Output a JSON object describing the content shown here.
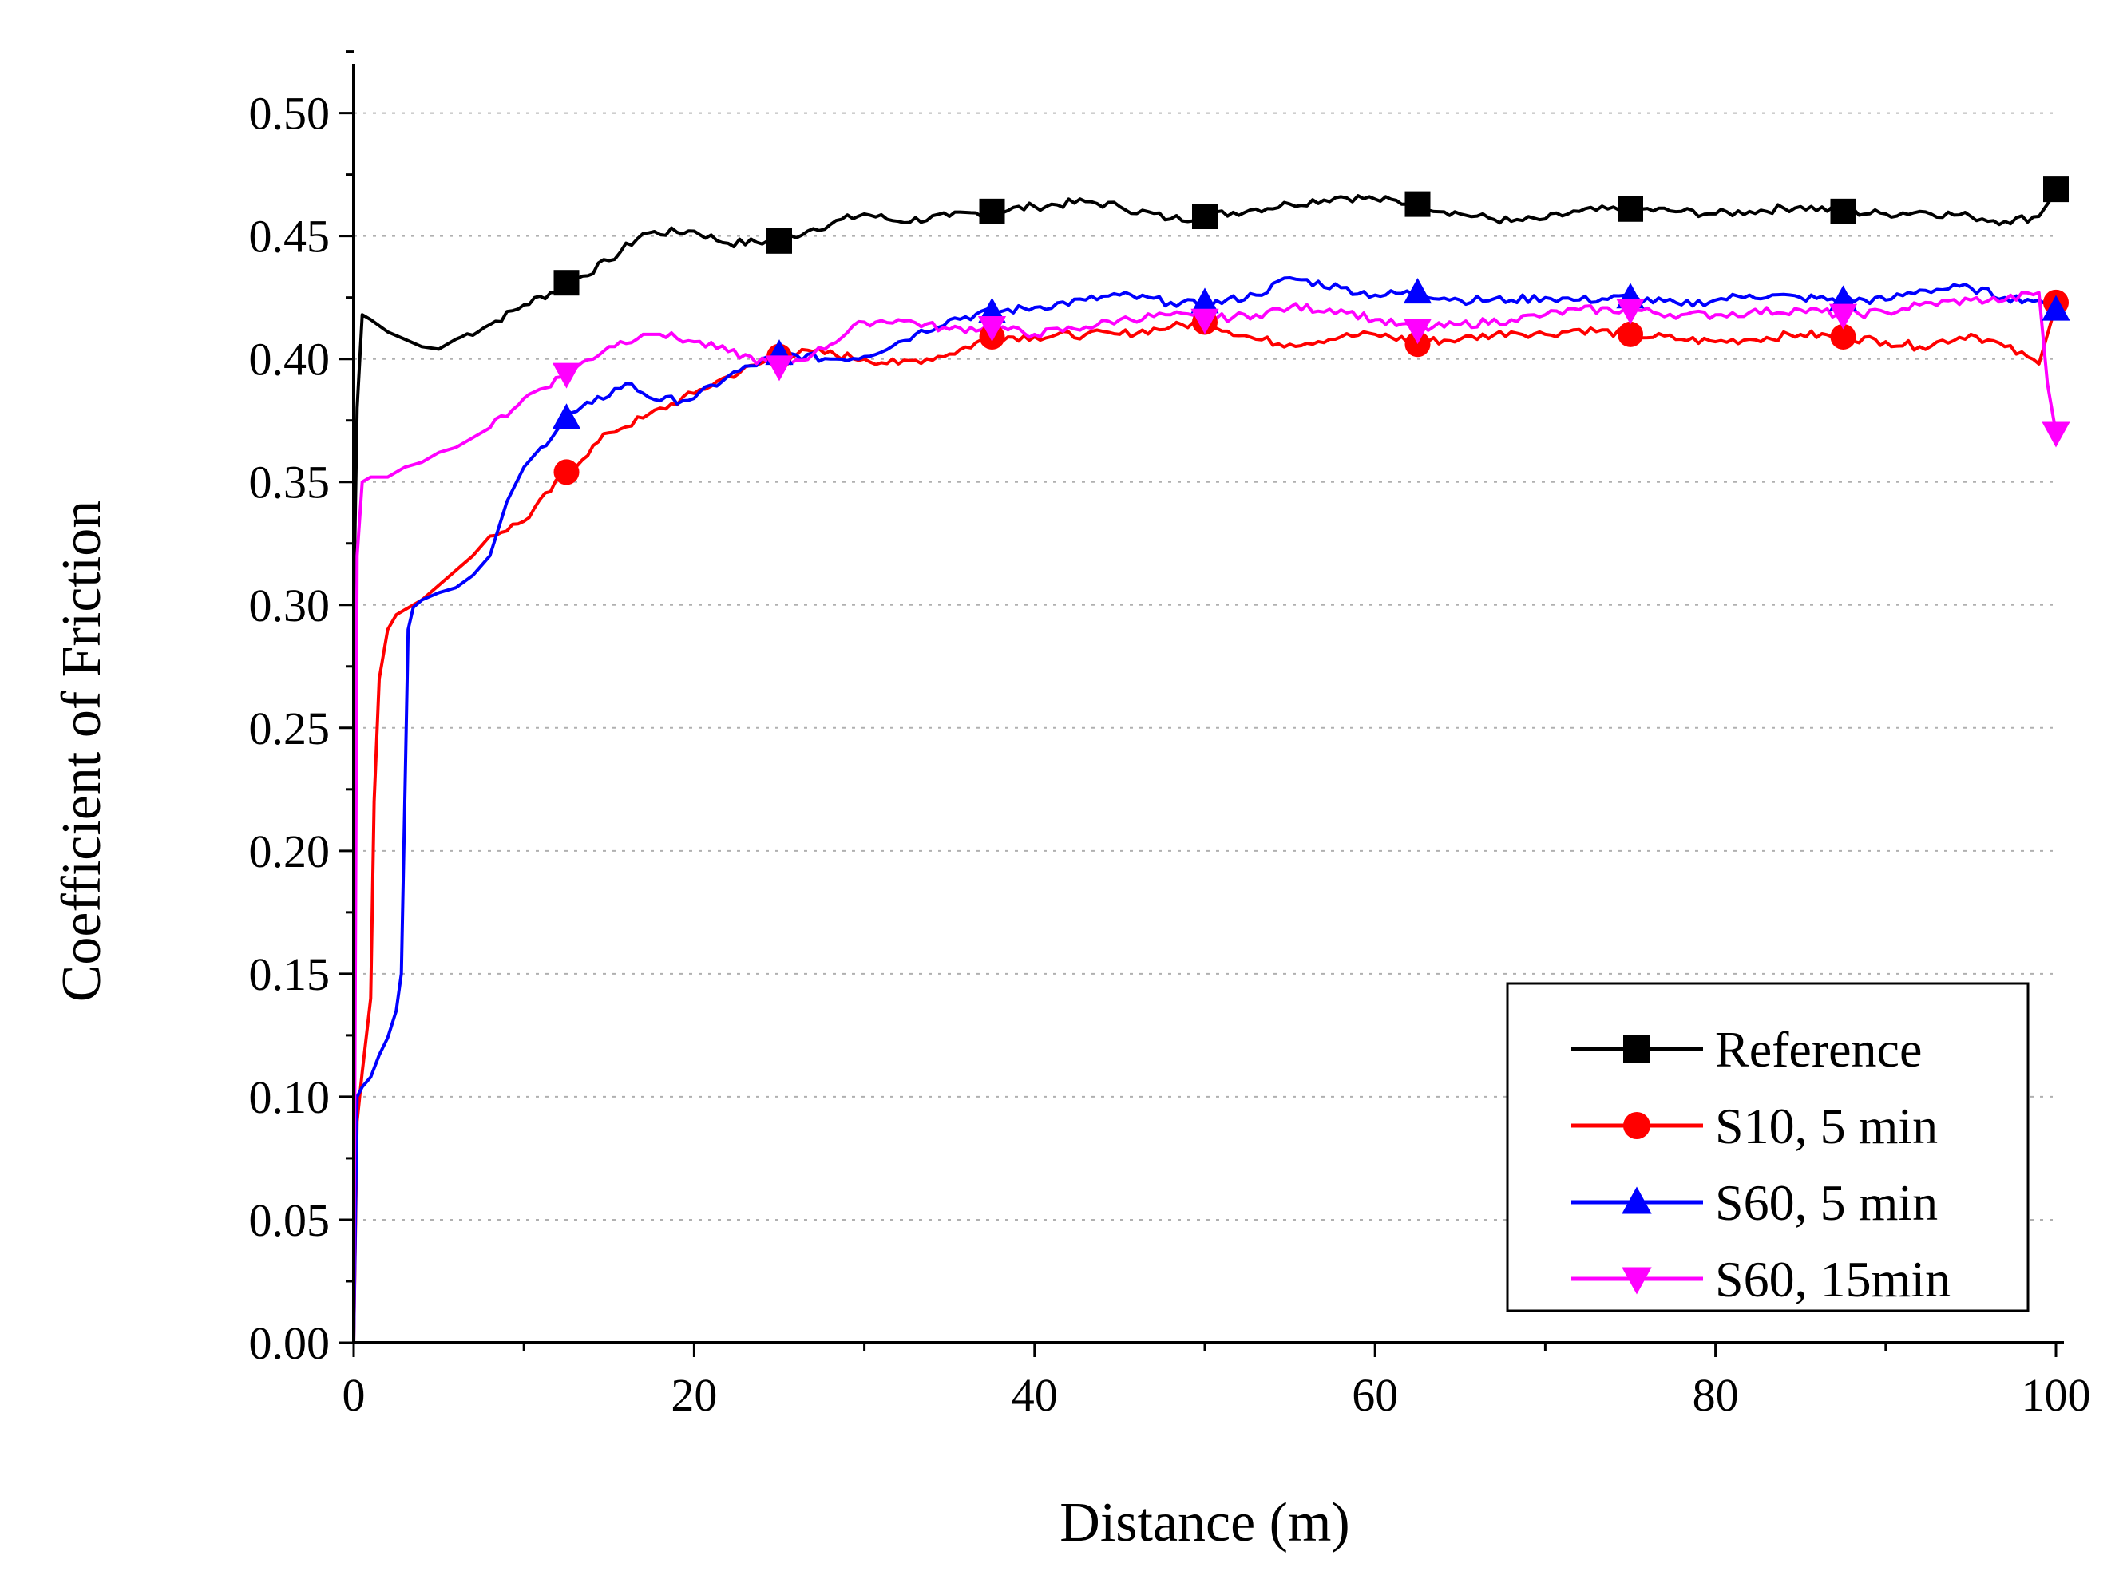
{
  "chart_data": {
    "type": "line",
    "title": "",
    "xlabel": "Distance (m)",
    "ylabel": "Coefficient of Friction",
    "xlim": [
      0,
      100
    ],
    "ylim": [
      0,
      0.52
    ],
    "xticks": [
      0,
      20,
      40,
      60,
      80,
      100
    ],
    "xtick_labels": [
      "0",
      "20",
      "40",
      "60",
      "80",
      "100"
    ],
    "yticks": [
      0,
      0.05,
      0.1,
      0.15,
      0.2,
      0.25,
      0.3,
      0.35,
      0.4,
      0.45,
      0.5
    ],
    "ytick_labels": [
      "0.00",
      "0.05",
      "0.10",
      "0.15",
      "0.20",
      "0.25",
      "0.30",
      "0.35",
      "0.40",
      "0.45",
      "0.50"
    ],
    "grid": "horizontal dotted",
    "legend_position": "bottom-right",
    "series": [
      {
        "name": "Reference",
        "color": "#000000",
        "marker": "square",
        "x": [
          0,
          0.2,
          0.5,
          1,
          2,
          3,
          4,
          5,
          6,
          8,
          10,
          12.5,
          15,
          17,
          20,
          22,
          25,
          27,
          30,
          32,
          35,
          37.5,
          40,
          43,
          45,
          48,
          50,
          53,
          55,
          58,
          60,
          62.5,
          65,
          68,
          70,
          72,
          75,
          78,
          80,
          82,
          85,
          87.5,
          90,
          92,
          95,
          97,
          99,
          100
        ],
        "y": [
          0.3,
          0.38,
          0.418,
          0.416,
          0.411,
          0.408,
          0.405,
          0.404,
          0.408,
          0.414,
          0.422,
          0.43,
          0.44,
          0.451,
          0.452,
          0.447,
          0.448,
          0.453,
          0.459,
          0.456,
          0.458,
          0.46,
          0.462,
          0.464,
          0.462,
          0.457,
          0.458,
          0.461,
          0.463,
          0.466,
          0.465,
          0.463,
          0.459,
          0.456,
          0.457,
          0.46,
          0.461,
          0.46,
          0.459,
          0.46,
          0.462,
          0.46,
          0.459,
          0.46,
          0.458,
          0.456,
          0.458,
          0.468
        ],
        "markers_x": [
          12.5,
          25,
          37.5,
          50,
          62.5,
          75,
          87.5,
          100
        ],
        "markers_y": [
          0.431,
          0.448,
          0.46,
          0.458,
          0.463,
          0.461,
          0.46,
          0.469
        ]
      },
      {
        "name": "S10, 5 min",
        "color": "#ff0000",
        "marker": "circle",
        "x": [
          0,
          0.2,
          0.5,
          1,
          1.2,
          1.5,
          2,
          2.5,
          3,
          4,
          5,
          6,
          7,
          8,
          10,
          12.5,
          15,
          17,
          20,
          22,
          25,
          27,
          30,
          32,
          35,
          37.5,
          40,
          43,
          45,
          48,
          50,
          53,
          55,
          58,
          60,
          62.5,
          65,
          68,
          70,
          72,
          75,
          78,
          80,
          82,
          85,
          87.5,
          90,
          92,
          95,
          97,
          99,
          100
        ],
        "y": [
          0.0,
          0.09,
          0.11,
          0.14,
          0.22,
          0.27,
          0.29,
          0.296,
          0.298,
          0.302,
          0.308,
          0.314,
          0.32,
          0.328,
          0.334,
          0.354,
          0.37,
          0.376,
          0.386,
          0.393,
          0.401,
          0.403,
          0.4,
          0.398,
          0.402,
          0.409,
          0.409,
          0.41,
          0.41,
          0.413,
          0.415,
          0.408,
          0.406,
          0.409,
          0.41,
          0.407,
          0.408,
          0.411,
          0.41,
          0.412,
          0.41,
          0.408,
          0.407,
          0.408,
          0.41,
          0.409,
          0.407,
          0.405,
          0.41,
          0.405,
          0.398,
          0.422
        ],
        "markers_x": [
          12.5,
          25,
          37.5,
          50,
          62.5,
          75,
          87.5,
          100
        ],
        "markers_y": [
          0.354,
          0.401,
          0.409,
          0.415,
          0.406,
          0.41,
          0.409,
          0.423
        ]
      },
      {
        "name": "S60, 5 min",
        "color": "#0000ff",
        "marker": "triangle-up",
        "x": [
          0,
          0.2,
          0.5,
          1,
          1.5,
          2,
          2.5,
          2.8,
          3,
          3.2,
          3.5,
          4,
          5,
          6,
          7,
          8,
          9,
          10,
          11,
          12.5,
          14,
          16,
          18,
          20,
          22,
          25,
          28,
          30,
          33,
          35,
          37.5,
          40,
          43,
          45,
          48,
          50,
          53,
          55,
          58,
          60,
          62.5,
          65,
          68,
          70,
          72,
          75,
          78,
          80,
          82,
          85,
          87.5,
          90,
          92,
          95,
          97,
          99,
          100
        ],
        "y": [
          0.0,
          0.1,
          0.104,
          0.108,
          0.117,
          0.124,
          0.135,
          0.15,
          0.22,
          0.29,
          0.299,
          0.302,
          0.305,
          0.307,
          0.312,
          0.32,
          0.342,
          0.356,
          0.364,
          0.376,
          0.382,
          0.39,
          0.383,
          0.384,
          0.393,
          0.402,
          0.4,
          0.401,
          0.41,
          0.416,
          0.419,
          0.421,
          0.424,
          0.426,
          0.423,
          0.422,
          0.426,
          0.433,
          0.429,
          0.426,
          0.427,
          0.424,
          0.424,
          0.425,
          0.424,
          0.425,
          0.422,
          0.424,
          0.426,
          0.425,
          0.424,
          0.424,
          0.428,
          0.429,
          0.425,
          0.424,
          0.42
        ],
        "markers_x": [
          12.5,
          25,
          37.5,
          50,
          62.5,
          75,
          87.5,
          100
        ],
        "markers_y": [
          0.376,
          0.402,
          0.419,
          0.423,
          0.427,
          0.425,
          0.424,
          0.42
        ]
      },
      {
        "name": "S60, 15min",
        "color": "#ff00ff",
        "marker": "triangle-down",
        "x": [
          0,
          0.2,
          0.5,
          1,
          2,
          3,
          4,
          5,
          6,
          7,
          8,
          10,
          12.5,
          15,
          17,
          18,
          20,
          22,
          25,
          27,
          30,
          32,
          35,
          37.5,
          40,
          43,
          45,
          48,
          50,
          53,
          55,
          58,
          60,
          62.5,
          65,
          68,
          70,
          72,
          75,
          78,
          80,
          82,
          85,
          87.5,
          90,
          92,
          95,
          97,
          99,
          99.5,
          100
        ],
        "y": [
          0.0,
          0.32,
          0.35,
          0.352,
          0.352,
          0.356,
          0.358,
          0.362,
          0.364,
          0.368,
          0.372,
          0.384,
          0.394,
          0.405,
          0.41,
          0.41,
          0.407,
          0.403,
          0.397,
          0.402,
          0.415,
          0.416,
          0.412,
          0.413,
          0.41,
          0.413,
          0.416,
          0.418,
          0.416,
          0.418,
          0.421,
          0.42,
          0.416,
          0.412,
          0.414,
          0.416,
          0.418,
          0.42,
          0.42,
          0.418,
          0.418,
          0.419,
          0.42,
          0.418,
          0.419,
          0.422,
          0.424,
          0.424,
          0.427,
          0.39,
          0.37
        ],
        "markers_x": [
          12.5,
          25,
          37.5,
          50,
          62.5,
          75,
          87.5,
          100
        ],
        "markers_y": [
          0.394,
          0.397,
          0.413,
          0.416,
          0.412,
          0.42,
          0.418,
          0.37
        ]
      }
    ]
  }
}
